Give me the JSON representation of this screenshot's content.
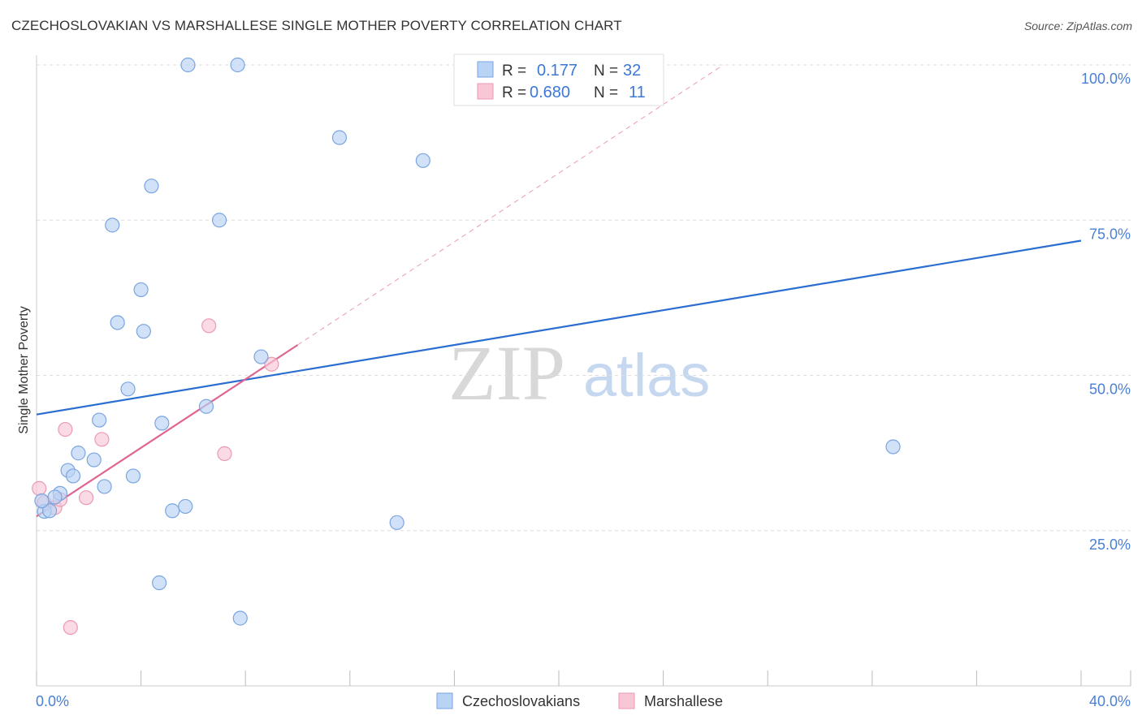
{
  "header": {
    "title": "CZECHOSLOVAKIAN VS MARSHALLESE SINGLE MOTHER POVERTY CORRELATION CHART",
    "source": "Source: ZipAtlas.com"
  },
  "watermark": {
    "zip": "ZIP",
    "atlas": "atlas"
  },
  "colors": {
    "blue_fill": "#b9d3f5",
    "blue_stroke": "#7aa5e0",
    "blue_line": "#2a6fcf",
    "pink_fill": "#f8c6d5",
    "pink_stroke": "#eb9ab3",
    "pink_line": "#e0648f",
    "grid": "#dddddd",
    "axis_text": "#4a7fd4"
  },
  "legend": {
    "rows": [
      {
        "r_label": "R =",
        "r_value": "0.177",
        "n_label": "N =",
        "n_value": "32"
      },
      {
        "r_label": "R =",
        "r_value": "0.680",
        "n_label": "N =",
        "n_value": "11"
      }
    ]
  },
  "chart_data": {
    "type": "scatter",
    "title": "CZECHOSLOVAKIAN VS MARSHALLESE SINGLE MOTHER POVERTY CORRELATION CHART",
    "xlabel": "",
    "ylabel": "Single Mother Poverty",
    "xlim": [
      0,
      40
    ],
    "ylim": [
      0,
      100
    ],
    "x_tick_labels": [
      "0.0%",
      "40.0%"
    ],
    "y_ticks": [
      25,
      50,
      75,
      100
    ],
    "y_tick_labels": [
      "25.0%",
      "50.0%",
      "75.0%",
      "100.0%"
    ],
    "grid": true,
    "legend_position": "top-center",
    "series": [
      {
        "name": "Czechoslovakians",
        "r": 0.177,
        "n": 32,
        "points": [
          [
            5.8,
            100
          ],
          [
            7.7,
            100
          ],
          [
            11.6,
            88.3
          ],
          [
            14.8,
            84.6
          ],
          [
            4.4,
            80.5
          ],
          [
            7.0,
            75.0
          ],
          [
            2.9,
            74.2
          ],
          [
            4.0,
            63.8
          ],
          [
            3.1,
            58.5
          ],
          [
            4.1,
            57.1
          ],
          [
            8.6,
            53.0
          ],
          [
            3.5,
            47.8
          ],
          [
            6.5,
            45.0
          ],
          [
            2.4,
            42.8
          ],
          [
            4.8,
            42.3
          ],
          [
            1.6,
            37.5
          ],
          [
            2.2,
            36.4
          ],
          [
            1.2,
            34.7
          ],
          [
            1.4,
            33.8
          ],
          [
            3.7,
            33.8
          ],
          [
            2.6,
            32.1
          ],
          [
            0.9,
            31.0
          ],
          [
            0.7,
            30.4
          ],
          [
            0.3,
            28.1
          ],
          [
            0.5,
            28.2
          ],
          [
            5.2,
            28.2
          ],
          [
            5.7,
            28.9
          ],
          [
            13.8,
            26.3
          ],
          [
            32.8,
            38.5
          ],
          [
            4.7,
            16.6
          ],
          [
            7.8,
            10.9
          ],
          [
            0.2,
            29.8
          ]
        ],
        "trend": {
          "x": [
            0,
            40
          ],
          "y": [
            43.7,
            71.7
          ]
        }
      },
      {
        "name": "Marshallese",
        "r": 0.68,
        "n": 11,
        "points": [
          [
            0.1,
            31.8
          ],
          [
            0.3,
            29.5
          ],
          [
            0.7,
            28.7
          ],
          [
            0.9,
            30.0
          ],
          [
            1.9,
            30.3
          ],
          [
            1.1,
            41.3
          ],
          [
            2.5,
            39.7
          ],
          [
            6.6,
            58.0
          ],
          [
            7.2,
            37.4
          ],
          [
            9.0,
            51.8
          ],
          [
            1.3,
            9.4
          ]
        ],
        "trend": {
          "x": [
            0,
            10
          ],
          "y": [
            27.3,
            54.9
          ]
        },
        "trend_extension": {
          "x": [
            10,
            26.3
          ],
          "y": [
            54.9,
            100
          ]
        }
      }
    ]
  }
}
